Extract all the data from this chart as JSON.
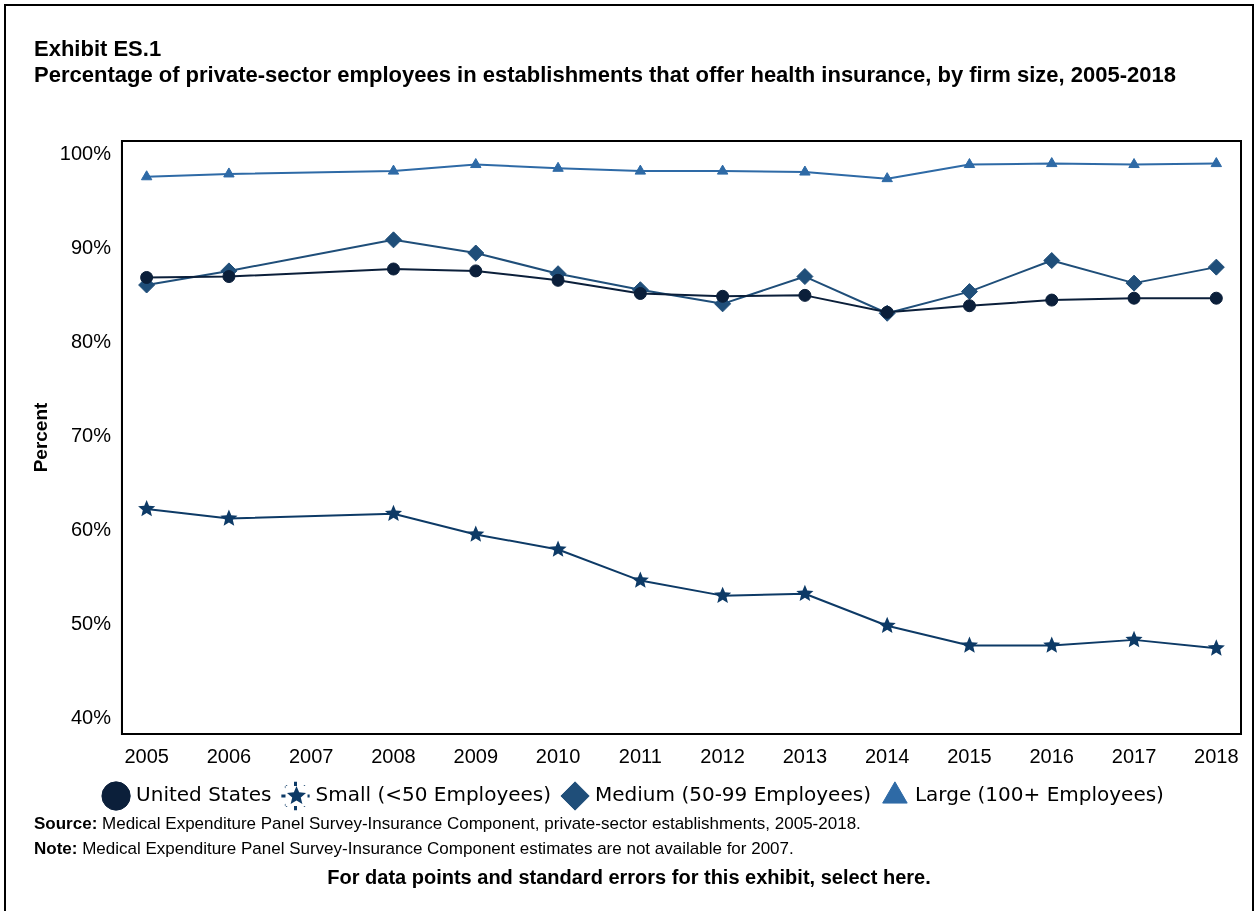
{
  "chart_data": {
    "type": "line",
    "title": "Exhibit ES.1",
    "subtitle": "Percentage of private-sector employees in establishments that offer health insurance, by firm size, 2005-2018",
    "ylabel": "Percent",
    "x": [
      2005,
      2006,
      2008,
      2009,
      2010,
      2011,
      2012,
      2013,
      2014,
      2015,
      2016,
      2017,
      2018
    ],
    "xlim": [
      2004.7,
      2018.3
    ],
    "xticks": [
      2005,
      2006,
      2007,
      2008,
      2009,
      2010,
      2011,
      2012,
      2013,
      2014,
      2015,
      2016,
      2017,
      2018
    ],
    "ylim": [
      38.4,
      101.4
    ],
    "yticks": [
      {
        "value": 40,
        "label": "40%"
      },
      {
        "value": 50,
        "label": "50%"
      },
      {
        "value": 60,
        "label": "60%"
      },
      {
        "value": 70,
        "label": "70%"
      },
      {
        "value": 80,
        "label": "80%"
      },
      {
        "value": 90,
        "label": "90%"
      },
      {
        "value": 100,
        "label": "100%"
      }
    ],
    "series": [
      {
        "name": "United States",
        "color": "#0b1f3a",
        "marker": "circle",
        "values": [
          86.9,
          87.0,
          87.8,
          87.6,
          86.6,
          85.2,
          84.9,
          85.0,
          83.2,
          83.9,
          84.5,
          84.7,
          84.7
        ]
      },
      {
        "name": "Small (<50 Employees)",
        "color": "#0d3a66",
        "marker": "star",
        "values": [
          62.3,
          61.3,
          61.8,
          59.6,
          58.0,
          54.7,
          53.1,
          53.3,
          49.9,
          47.8,
          47.8,
          48.4,
          47.5
        ]
      },
      {
        "name": "Medium (50-99 Employees)",
        "color": "#1f4e79",
        "marker": "diamond",
        "values": [
          86.1,
          87.6,
          90.9,
          89.5,
          87.3,
          85.6,
          84.1,
          87.0,
          83.1,
          85.4,
          88.7,
          86.3,
          88.0
        ]
      },
      {
        "name": "Large (100+ Employees)",
        "color": "#2e6aa6",
        "marker": "triangle",
        "values": [
          97.6,
          97.9,
          98.2,
          98.9,
          98.5,
          98.2,
          98.2,
          98.1,
          97.4,
          98.9,
          99.0,
          98.9,
          99.0
        ]
      }
    ],
    "grid": false,
    "legend": "bottom",
    "line_style": "solid",
    "annotations": [
      "Source: Medical Expenditure Panel Survey-Insurance Component, private-sector establishments, 2005-2018.",
      "Note: Medical Expenditure Panel Survey-Insurance Component estimates are not available for 2007.",
      "For data points and standard errors for this exhibit, select here."
    ]
  }
}
